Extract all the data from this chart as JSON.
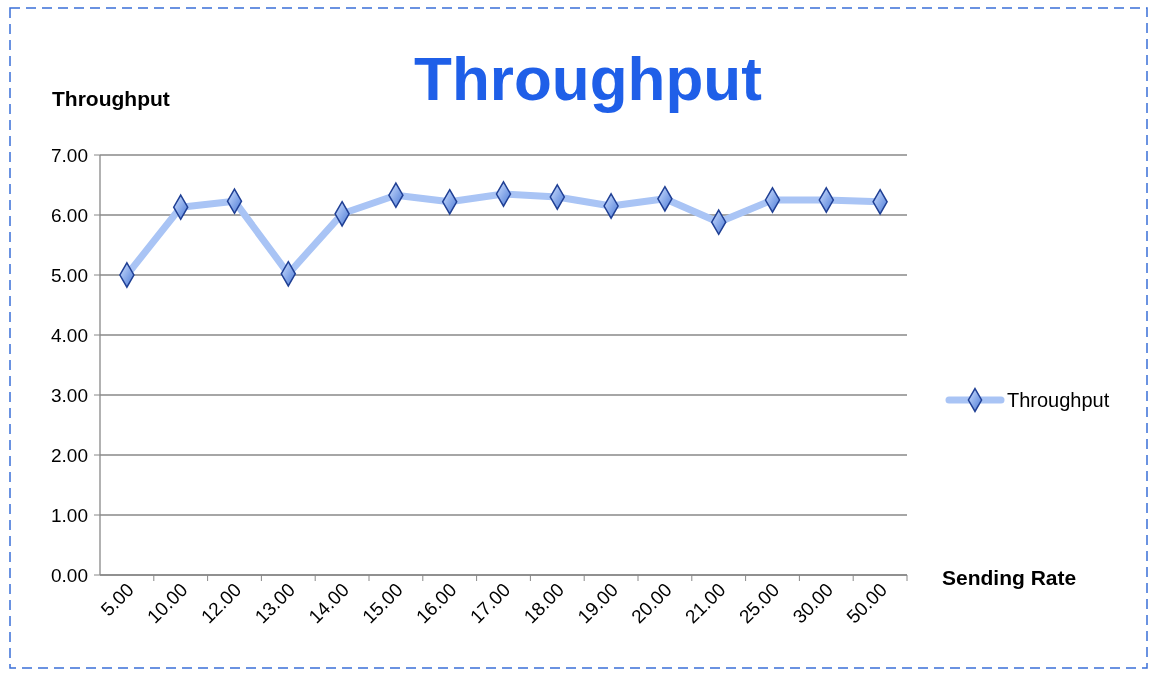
{
  "chart_data": {
    "type": "line",
    "title": "Throughput",
    "ylabel": "Throughput",
    "xlabel": "Sending Rate",
    "categories": [
      "5.00",
      "10.00",
      "12.00",
      "13.00",
      "14.00",
      "15.00",
      "16.00",
      "17.00",
      "18.00",
      "19.00",
      "20.00",
      "21.00",
      "25.00",
      "30.00",
      "50.00"
    ],
    "series": [
      {
        "name": "Throughput",
        "color": "#a9c4f5",
        "values": [
          5.0,
          6.13,
          6.23,
          5.02,
          6.02,
          6.33,
          6.22,
          6.35,
          6.3,
          6.15,
          6.27,
          5.88,
          6.25,
          6.25,
          6.22
        ]
      }
    ],
    "ylim": [
      0,
      7
    ],
    "yticks": [
      {
        "value": 0,
        "label": "0.00"
      },
      {
        "value": 1,
        "label": "1.00"
      },
      {
        "value": 2,
        "label": "2.00"
      },
      {
        "value": 3,
        "label": "3.00"
      },
      {
        "value": 4,
        "label": "4.00"
      },
      {
        "value": 5,
        "label": "5.00"
      },
      {
        "value": 6,
        "label": "6.00"
      },
      {
        "value": 7,
        "label": "7.00"
      }
    ],
    "grid": "y",
    "legend": "right",
    "marker": "diamond",
    "line_style": "solid"
  }
}
